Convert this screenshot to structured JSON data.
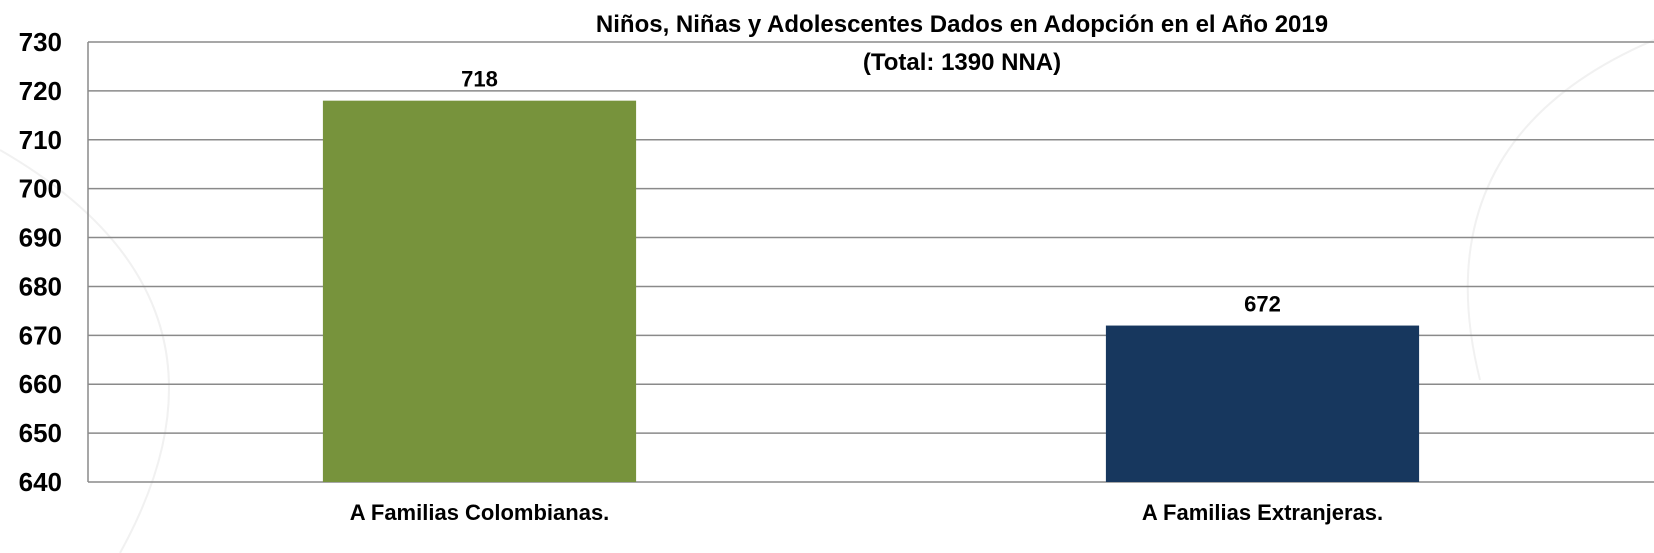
{
  "chart_data": {
    "type": "bar",
    "title": "Niños, Niñas y Adolescentes  Dados en Adopción en el Año 2019",
    "subtitle": "(Total:  1390 NNA)",
    "categories": [
      "A Familias Colombianas.",
      "A Familias Extranjeras."
    ],
    "values": [
      718,
      672
    ],
    "data_labels": [
      "718",
      "672"
    ],
    "bar_colors": [
      "#77933c",
      "#17375e"
    ],
    "ylim": [
      640,
      730
    ],
    "ytick_step": 10,
    "ytick_labels": [
      "640",
      "650",
      "660",
      "670",
      "680",
      "690",
      "700",
      "710",
      "720",
      "730"
    ],
    "xlabel": "",
    "ylabel": "",
    "grid": true,
    "legend": "none"
  }
}
